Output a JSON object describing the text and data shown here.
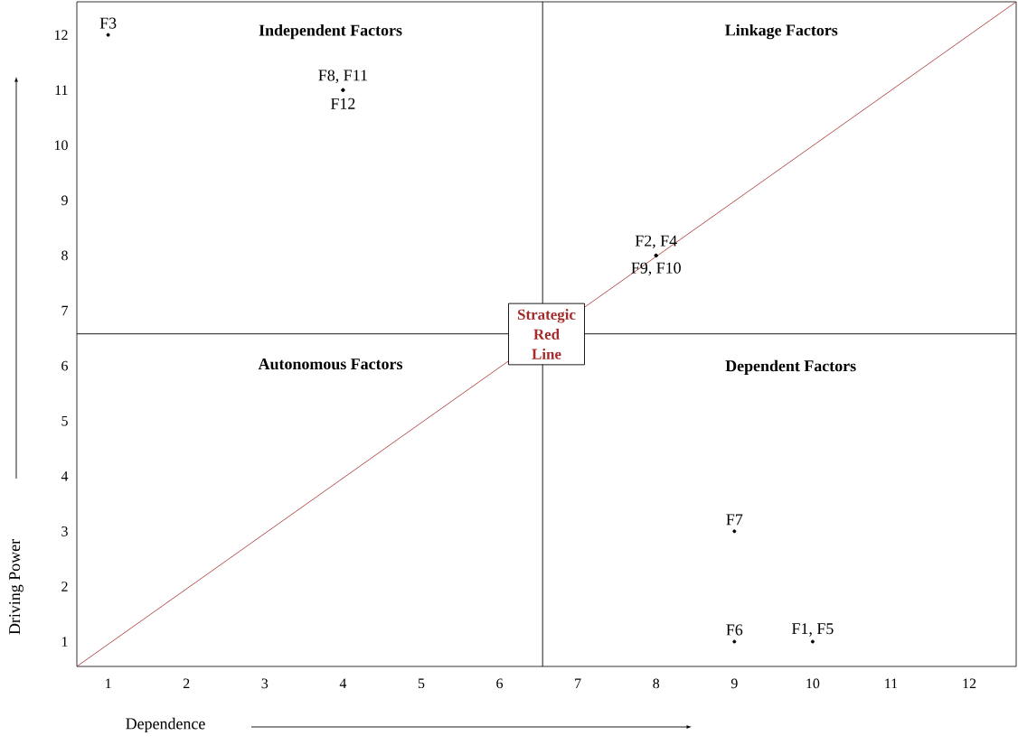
{
  "chart_data": {
    "type": "scatter",
    "xlabel": "Dependence",
    "ylabel": "Driving Power",
    "xlim": [
      0.6,
      12.6
    ],
    "ylim": [
      0.55,
      12.6
    ],
    "xticks": [
      1,
      2,
      3,
      4,
      5,
      6,
      7,
      8,
      9,
      10,
      11,
      12
    ],
    "yticks": [
      1,
      2,
      3,
      4,
      5,
      6,
      7,
      8,
      9,
      10,
      11,
      12
    ],
    "grid": false,
    "legend": false,
    "series": [
      {
        "name": "Strategic Red Line",
        "type": "line",
        "color": "#a52a2a",
        "x": [
          0.6,
          12.6
        ],
        "values": [
          0.55,
          12.6
        ]
      },
      {
        "marker": "circle",
        "color": "#000000",
        "x": [
          1,
          4,
          4,
          8,
          8,
          9,
          9,
          10
        ],
        "values": [
          12,
          11,
          11,
          8,
          8,
          3,
          1,
          1
        ],
        "value_labels": [
          "F3",
          "F8, F11",
          "F12",
          "F2, F4",
          "F9, F10",
          "F7",
          "F6",
          "F1, F5"
        ]
      }
    ],
    "ref_lines": [
      {
        "axis": "x",
        "value": 6.55,
        "color": "#000000"
      },
      {
        "axis": "y",
        "value": 6.58,
        "color": "#000000"
      }
    ],
    "annotations": [
      "Independent Factors",
      "Linkage Factors",
      "Autonomous Factors",
      "Dependent Factors"
    ]
  }
}
